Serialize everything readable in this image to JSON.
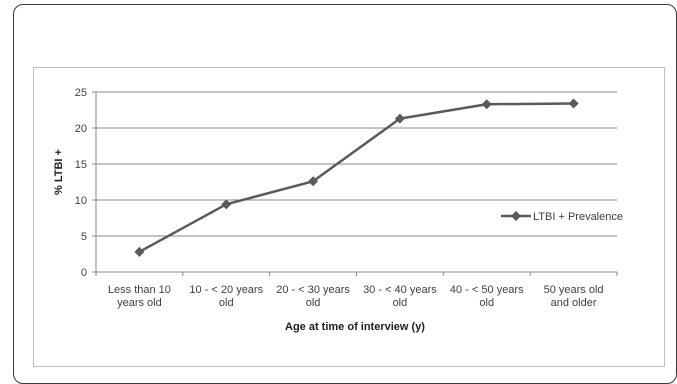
{
  "chart_data": {
    "type": "line",
    "title": "",
    "xlabel": "Age at time of interview (y)",
    "ylabel": "% LTBI +",
    "ylim": [
      0,
      25
    ],
    "yticks": [
      0,
      5,
      10,
      15,
      20,
      25
    ],
    "grid": true,
    "legend_position": "right",
    "categories": [
      [
        "Less than 10",
        "years old"
      ],
      [
        "10 - < 20 years",
        "old"
      ],
      [
        "20 - < 30 years",
        "old"
      ],
      [
        "30 - < 40 years",
        "old"
      ],
      [
        "40 - < 50 years",
        "old"
      ],
      [
        "50 years old",
        "and older"
      ]
    ],
    "series": [
      {
        "name": "LTBI + Prevalence",
        "color": "#5a5a5a",
        "values": [
          2.8,
          9.4,
          12.6,
          21.3,
          23.3,
          23.4
        ]
      }
    ]
  }
}
